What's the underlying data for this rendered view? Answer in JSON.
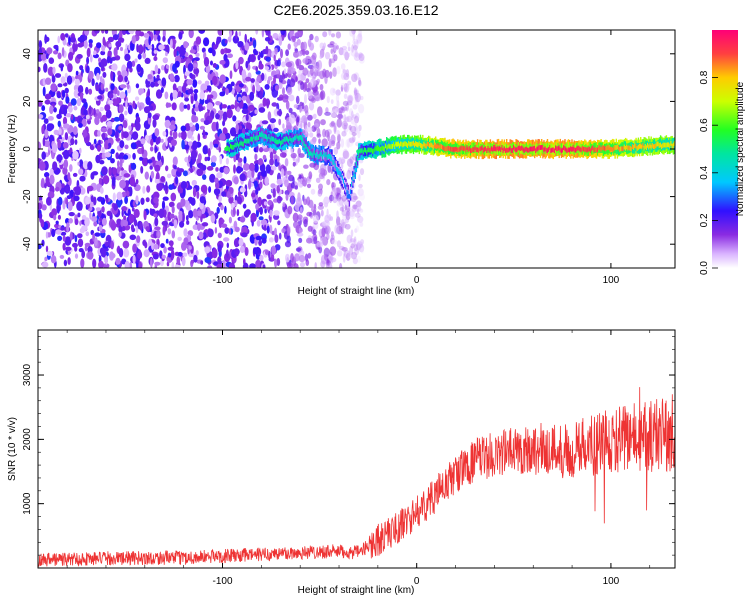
{
  "title": "C2E6.2025.359.03.16.E12",
  "chart_data": [
    {
      "type": "heatmap",
      "xlabel": "Height of straight line (km)",
      "ylabel": "Frequency (Hz)",
      "xlim": [
        -195,
        133
      ],
      "ylim": [
        -50,
        50
      ],
      "x_ticks": [
        "-100",
        "0",
        "100"
      ],
      "y_ticks": [
        "-40",
        "-20",
        "0",
        "20",
        "40"
      ],
      "colorbar": {
        "label": "Normalized spectral amplitude",
        "range": [
          0,
          1
        ],
        "ticks": [
          "0.0",
          "0.2",
          "0.4",
          "0.6",
          "0.8"
        ]
      },
      "noise_region_x": [
        -195,
        -28
      ],
      "ridge": [
        {
          "x": -98,
          "y": 0,
          "v": 0.55
        },
        {
          "x": -80,
          "y": 6,
          "v": 0.45
        },
        {
          "x": -72,
          "y": 3,
          "v": 0.5
        },
        {
          "x": -60,
          "y": 5,
          "v": 0.45
        },
        {
          "x": -55,
          "y": -2,
          "v": 0.45
        },
        {
          "x": -45,
          "y": -3,
          "v": 0.4
        },
        {
          "x": -40,
          "y": -10,
          "v": 0.35
        },
        {
          "x": -35,
          "y": -20,
          "v": 0.3
        },
        {
          "x": -30,
          "y": -1,
          "v": 0.5
        },
        {
          "x": -20,
          "y": 0,
          "v": 0.6
        },
        {
          "x": -10,
          "y": 2,
          "v": 0.7
        },
        {
          "x": 0,
          "y": 2,
          "v": 0.75
        },
        {
          "x": 10,
          "y": 1,
          "v": 0.85
        },
        {
          "x": 20,
          "y": 0,
          "v": 0.9
        },
        {
          "x": 40,
          "y": 0,
          "v": 0.95
        },
        {
          "x": 60,
          "y": 0,
          "v": 0.95
        },
        {
          "x": 80,
          "y": 0,
          "v": 0.95
        },
        {
          "x": 100,
          "y": 0,
          "v": 0.85
        },
        {
          "x": 115,
          "y": 1,
          "v": 0.8
        },
        {
          "x": 133,
          "y": 2,
          "v": 0.75
        }
      ]
    },
    {
      "type": "line",
      "xlabel": "Height of straight line (km)",
      "ylabel": "SNR (10 * v/v)",
      "xlim": [
        -195,
        133
      ],
      "ylim": [
        0,
        3700
      ],
      "x_ticks": [
        "-100",
        "0",
        "100"
      ],
      "y_ticks": [
        "1000",
        "2000",
        "3000"
      ],
      "series": [
        {
          "color": "#ee3333",
          "envelope": [
            {
              "x": -195,
              "y": 130
            },
            {
              "x": -160,
              "y": 150
            },
            {
              "x": -120,
              "y": 160
            },
            {
              "x": -80,
              "y": 210
            },
            {
              "x": -45,
              "y": 260
            },
            {
              "x": -30,
              "y": 240
            },
            {
              "x": -22,
              "y": 400
            },
            {
              "x": -10,
              "y": 620
            },
            {
              "x": 0,
              "y": 860
            },
            {
              "x": 10,
              "y": 1150
            },
            {
              "x": 20,
              "y": 1450
            },
            {
              "x": 30,
              "y": 1680
            },
            {
              "x": 45,
              "y": 1800
            },
            {
              "x": 60,
              "y": 1850
            },
            {
              "x": 75,
              "y": 1830
            },
            {
              "x": 90,
              "y": 1900
            },
            {
              "x": 105,
              "y": 2000
            },
            {
              "x": 120,
              "y": 2050
            },
            {
              "x": 133,
              "y": 2100
            }
          ]
        }
      ]
    }
  ]
}
